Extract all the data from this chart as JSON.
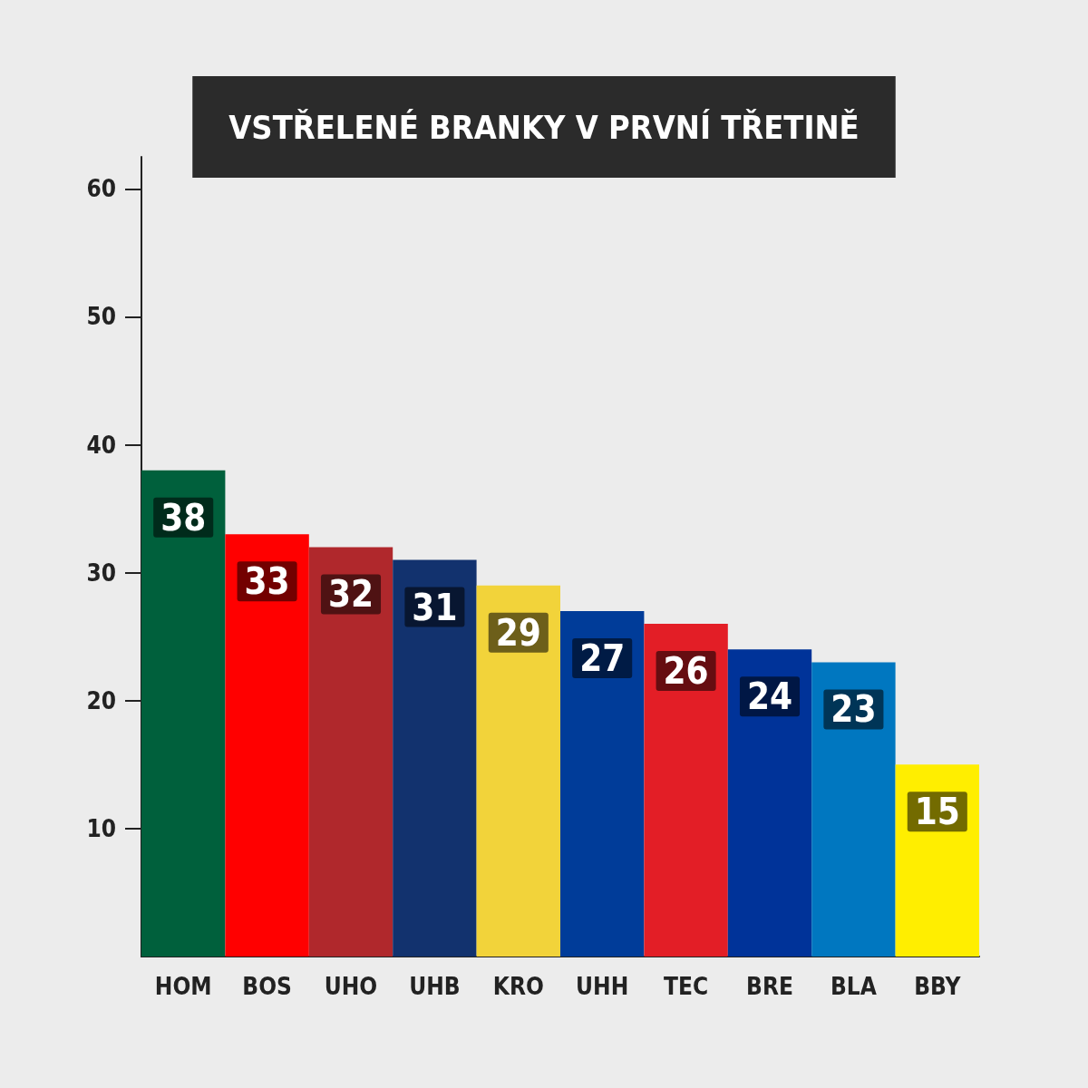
{
  "chart_data": {
    "type": "bar",
    "title": "VSTŘELENÉ BRANKY V PRVNÍ TŘETINĚ",
    "categories": [
      "HOM",
      "BOS",
      "UHO",
      "UHB",
      "KRO",
      "UHH",
      "TEC",
      "BRE",
      "BLA",
      "BBY"
    ],
    "values": [
      38,
      33,
      32,
      31,
      29,
      27,
      26,
      24,
      23,
      15
    ],
    "colors": [
      "#00603c",
      "#ff0000",
      "#b0282c",
      "#12326e",
      "#f2d33a",
      "#003c99",
      "#e31e26",
      "#003399",
      "#0077c0",
      "#ffee00"
    ],
    "ylim": [
      0,
      62.5
    ],
    "yticks": [
      10,
      20,
      30,
      40,
      50,
      60
    ],
    "data_labels": true,
    "grid": false
  }
}
